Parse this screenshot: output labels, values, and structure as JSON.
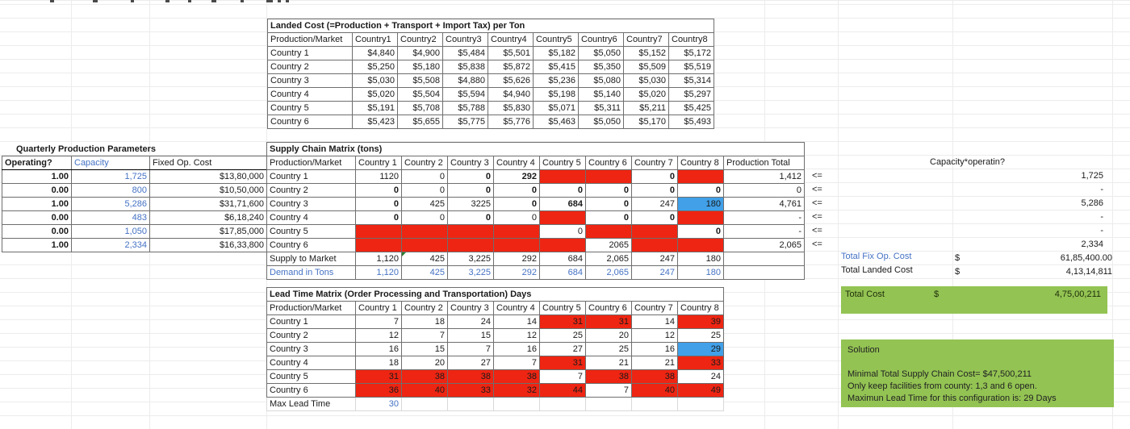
{
  "landed_cost": {
    "title": "Landed Cost (=Production + Transport + Import Tax) per Ton",
    "corner_header": "Production/Market",
    "columns": [
      "Country1",
      "Country2",
      "Country3",
      "Country4",
      "Country5",
      "Country6",
      "Country7",
      "Country8"
    ],
    "rows": [
      {
        "label": "Country 1",
        "values": [
          "$4,840",
          "$4,900",
          "$5,484",
          "$5,501",
          "$5,182",
          "$5,050",
          "$5,152",
          "$5,172"
        ]
      },
      {
        "label": "Country 2",
        "values": [
          "$5,250",
          "$5,180",
          "$5,838",
          "$5,872",
          "$5,415",
          "$5,350",
          "$5,509",
          "$5,519"
        ]
      },
      {
        "label": "Country 3",
        "values": [
          "$5,030",
          "$5,508",
          "$4,880",
          "$5,626",
          "$5,236",
          "$5,080",
          "$5,030",
          "$5,314"
        ]
      },
      {
        "label": "Country 4",
        "values": [
          "$5,020",
          "$5,504",
          "$5,594",
          "$4,940",
          "$5,198",
          "$5,140",
          "$5,020",
          "$5,297"
        ]
      },
      {
        "label": "Country 5",
        "values": [
          "$5,191",
          "$5,708",
          "$5,788",
          "$5,830",
          "$5,071",
          "$5,311",
          "$5,211",
          "$5,425"
        ]
      },
      {
        "label": "Country 6",
        "values": [
          "$5,423",
          "$5,655",
          "$5,775",
          "$5,776",
          "$5,463",
          "$5,050",
          "$5,170",
          "$5,493"
        ]
      }
    ]
  },
  "production_params": {
    "title": "Quarterly Production Parameters",
    "headers": [
      "Operating?",
      "Capacity",
      "Fixed Op. Cost"
    ],
    "rows": [
      {
        "operating": "1.00",
        "capacity": "1,725",
        "fixed_cost": "$13,80,000"
      },
      {
        "operating": "0.00",
        "capacity": "800",
        "fixed_cost": "$10,50,000"
      },
      {
        "operating": "1.00",
        "capacity": "5,286",
        "fixed_cost": "$31,71,600"
      },
      {
        "operating": "0.00",
        "capacity": "483",
        "fixed_cost": "$6,18,240"
      },
      {
        "operating": "0.00",
        "capacity": "1,050",
        "fixed_cost": "$17,85,000"
      },
      {
        "operating": "1.00",
        "capacity": "2,334",
        "fixed_cost": "$16,33,800"
      }
    ]
  },
  "supply_matrix": {
    "title": "Supply Chain Matrix (tons)",
    "corner_header": "Production/Market",
    "columns": [
      "Country 1",
      "Country 2",
      "Country 3",
      "Country 4",
      "Country 5",
      "Country 6",
      "Country 7",
      "Country 8"
    ],
    "total_header": "Production Total",
    "op_symbol": "<=",
    "rows": [
      {
        "label": "Country 1",
        "cells": [
          {
            "v": "1120"
          },
          {
            "v": "0"
          },
          {
            "v": "0",
            "b": 1
          },
          {
            "v": "292",
            "b": 1
          },
          {
            "r": 1
          },
          {
            "r": 1
          },
          {
            "v": "0",
            "b": 1
          },
          {
            "r": 1
          }
        ],
        "total": "1,412"
      },
      {
        "label": "Country 2",
        "cells": [
          {
            "v": "0",
            "b": 1
          },
          {
            "v": "0"
          },
          {
            "v": "0",
            "b": 1
          },
          {
            "v": "0",
            "b": 1
          },
          {
            "v": "0",
            "b": 1
          },
          {
            "v": "0",
            "b": 1
          },
          {
            "v": "0",
            "b": 1
          },
          {
            "v": "0",
            "b": 1
          }
        ],
        "total": "0"
      },
      {
        "label": "Country 3",
        "cells": [
          {
            "v": "0",
            "b": 1
          },
          {
            "v": "425"
          },
          {
            "v": "3225"
          },
          {
            "v": "0",
            "b": 1
          },
          {
            "v": "684",
            "b": 1
          },
          {
            "v": "0",
            "b": 1
          },
          {
            "v": "247"
          },
          {
            "v": "180",
            "bg": 1
          }
        ],
        "total": "4,761"
      },
      {
        "label": "Country 4",
        "cells": [
          {
            "v": "0",
            "b": 1
          },
          {
            "v": "0"
          },
          {
            "v": "0",
            "b": 1
          },
          {
            "v": "0"
          },
          {
            "r": 1
          },
          {
            "v": "0",
            "b": 1
          },
          {
            "v": "0",
            "b": 1
          },
          {
            "r": 1
          }
        ],
        "total": "-"
      },
      {
        "label": "Country 5",
        "cells": [
          {
            "r": 1
          },
          {
            "r": 1
          },
          {
            "r": 1
          },
          {
            "r": 1
          },
          {
            "v": "0"
          },
          {
            "r": 1
          },
          {
            "r": 1
          },
          {
            "v": "0",
            "b": 1
          }
        ],
        "total": "-"
      },
      {
        "label": "Country 6",
        "cells": [
          {
            "r": 1
          },
          {
            "r": 1
          },
          {
            "r": 1
          },
          {
            "r": 1
          },
          {
            "r": 1
          },
          {
            "v": "2065"
          },
          {
            "r": 1
          },
          {
            "r": 1
          }
        ],
        "total": "2,065"
      }
    ],
    "supply_row": {
      "label": "Supply to Market",
      "values": [
        "1,120",
        "425",
        "3,225",
        "292",
        "684",
        "2,065",
        "247",
        "180"
      ]
    },
    "demand_row": {
      "label": "Demand in Tons",
      "values": [
        "1,120",
        "425",
        "3,225",
        "292",
        "684",
        "2,065",
        "247",
        "180"
      ]
    }
  },
  "capacity_check": {
    "header": "Capacity*operatin?",
    "values": [
      "1,725",
      "-",
      "5,286",
      "-",
      "-",
      "2,334"
    ]
  },
  "totals": {
    "fix_op": {
      "label": "Total Fix Op. Cost",
      "currency": "$",
      "value": "61,85,400.00"
    },
    "landed": {
      "label": "Total Landed Cost",
      "currency": "$",
      "value": "4,13,14,811"
    },
    "total_cost": {
      "label": "Total Cost",
      "currency": "$",
      "value": "4,75,00,211"
    }
  },
  "lead_time": {
    "title": "Lead Time Matrix (Order Processing and Transportation) Days",
    "corner_header": "Production/Market",
    "columns": [
      "Country 1",
      "Country 2",
      "Country 3",
      "Country 4",
      "Country 5",
      "Country 6",
      "Country 7",
      "Country 8"
    ],
    "rows": [
      {
        "label": "Country 1",
        "cells": [
          {
            "v": "7"
          },
          {
            "v": "18"
          },
          {
            "v": "24"
          },
          {
            "v": "14"
          },
          {
            "v": "31",
            "r": 1
          },
          {
            "v": "31",
            "r": 1
          },
          {
            "v": "14"
          },
          {
            "v": "39",
            "r": 1
          }
        ]
      },
      {
        "label": "Country 2",
        "cells": [
          {
            "v": "12"
          },
          {
            "v": "7"
          },
          {
            "v": "15"
          },
          {
            "v": "12"
          },
          {
            "v": "25"
          },
          {
            "v": "20"
          },
          {
            "v": "12"
          },
          {
            "v": "25"
          }
        ]
      },
      {
        "label": "Country 3",
        "cells": [
          {
            "v": "16"
          },
          {
            "v": "15"
          },
          {
            "v": "7"
          },
          {
            "v": "16"
          },
          {
            "v": "27"
          },
          {
            "v": "25"
          },
          {
            "v": "16"
          },
          {
            "v": "29",
            "bg": 1
          }
        ]
      },
      {
        "label": "Country 4",
        "cells": [
          {
            "v": "18"
          },
          {
            "v": "20"
          },
          {
            "v": "27"
          },
          {
            "v": "7"
          },
          {
            "v": "31",
            "r": 1
          },
          {
            "v": "21"
          },
          {
            "v": "21"
          },
          {
            "v": "33",
            "r": 1
          }
        ]
      },
      {
        "label": "Country 5",
        "cells": [
          {
            "v": "31",
            "r": 1
          },
          {
            "v": "38",
            "r": 1
          },
          {
            "v": "38",
            "r": 1
          },
          {
            "v": "38",
            "r": 1
          },
          {
            "v": "7"
          },
          {
            "v": "38",
            "r": 1
          },
          {
            "v": "38",
            "r": 1
          },
          {
            "v": "24"
          }
        ]
      },
      {
        "label": "Country 6",
        "cells": [
          {
            "v": "36",
            "r": 1
          },
          {
            "v": "40",
            "r": 1
          },
          {
            "v": "33",
            "r": 1
          },
          {
            "v": "32",
            "r": 1
          },
          {
            "v": "44",
            "r": 1
          },
          {
            "v": "7"
          },
          {
            "v": "40",
            "r": 1
          },
          {
            "v": "49",
            "r": 1
          }
        ]
      }
    ],
    "max_lead": {
      "label": "Max Lead Time",
      "value": "30"
    }
  },
  "solution": {
    "header": "Solution",
    "lines": [
      "Minimal Total Supply Chain Cost= $47,500,211",
      "Only keep facilities from county: 1,3 and 6 open.",
      "Maximun Lead Time for this configuration is: 29 Days"
    ]
  },
  "colors": {
    "infeasible_red": "#ee2512",
    "highlight_blue": "#41a0e8",
    "solution_green": "#93c353",
    "input_blue_text": "#4472c4"
  }
}
